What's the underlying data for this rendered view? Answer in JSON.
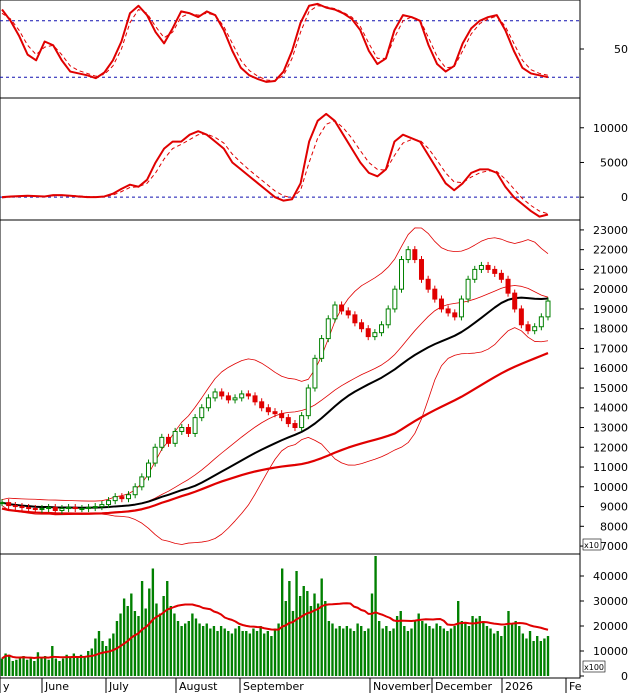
{
  "chart_data": [
    {
      "type": "line",
      "panel": "oscillator-top",
      "y_ticks": [
        {
          "value": 50,
          "label": "50"
        }
      ],
      "ylim": [
        0,
        100
      ],
      "reference_levels": [
        80,
        20
      ],
      "series": [
        {
          "role": "main",
          "color": "#e00000",
          "style": "solid",
          "values": [
            92,
            80,
            64,
            44,
            38,
            58,
            54,
            38,
            26,
            24,
            22,
            19,
            25,
            38,
            58,
            88,
            96,
            86,
            68,
            56,
            72,
            90,
            88,
            84,
            90,
            86,
            70,
            48,
            30,
            22,
            18,
            15,
            16,
            26,
            48,
            78,
            96,
            98,
            94,
            92,
            88,
            82,
            70,
            48,
            34,
            40,
            70,
            86,
            84,
            80,
            54,
            34,
            26,
            32,
            56,
            72,
            80,
            84,
            86,
            70,
            48,
            30,
            24,
            22,
            20
          ]
        },
        {
          "role": "signal",
          "color": "#e00000",
          "style": "dashed",
          "values": [
            88,
            82,
            70,
            54,
            44,
            52,
            54,
            44,
            32,
            27,
            24,
            21,
            23,
            32,
            50,
            78,
            92,
            88,
            74,
            62,
            68,
            84,
            88,
            86,
            88,
            86,
            74,
            56,
            38,
            27,
            21,
            17,
            16,
            22,
            40,
            68,
            90,
            96,
            95,
            93,
            89,
            84,
            74,
            56,
            40,
            40,
            62,
            80,
            84,
            81,
            62,
            42,
            30,
            31,
            48,
            66,
            77,
            82,
            85,
            74,
            56,
            38,
            28,
            24,
            22
          ]
        }
      ]
    },
    {
      "type": "line",
      "panel": "oscillator-middle",
      "y_ticks": [
        {
          "value": 10000,
          "label": "10000"
        },
        {
          "value": 5000,
          "label": "5000"
        },
        {
          "value": 0,
          "label": "0"
        }
      ],
      "ylim": [
        -3000,
        14000
      ],
      "reference_levels": [
        0
      ],
      "series": [
        {
          "role": "main",
          "color": "#e00000",
          "style": "solid",
          "values": [
            0,
            100,
            150,
            200,
            150,
            100,
            300,
            300,
            200,
            100,
            0,
            0,
            100,
            500,
            1200,
            1800,
            1500,
            2500,
            5000,
            7000,
            8000,
            8000,
            9000,
            9500,
            9000,
            8000,
            7000,
            5000,
            4000,
            3000,
            2000,
            1000,
            0,
            -500,
            -300,
            2000,
            8000,
            11000,
            12000,
            11000,
            9000,
            7000,
            5000,
            3500,
            3000,
            4000,
            8000,
            9000,
            8500,
            8000,
            6000,
            4000,
            2000,
            1000,
            2000,
            3500,
            4000,
            4000,
            3500,
            1500,
            0,
            -1000,
            -2000,
            -2800,
            -2500
          ]
        },
        {
          "role": "signal",
          "color": "#e00000",
          "style": "dashed",
          "values": [
            -100,
            0,
            80,
            150,
            150,
            120,
            200,
            250,
            230,
            180,
            100,
            50,
            60,
            300,
            800,
            1400,
            1500,
            2000,
            3500,
            5500,
            7000,
            7600,
            8300,
            9000,
            9100,
            8600,
            7800,
            6200,
            5000,
            3900,
            2900,
            1900,
            900,
            200,
            -100,
            1000,
            5000,
            8500,
            10500,
            11000,
            10000,
            8500,
            6700,
            5000,
            4000,
            3900,
            6000,
            7800,
            8300,
            8200,
            7000,
            5300,
            3500,
            2200,
            2100,
            2900,
            3500,
            3800,
            3700,
            2600,
            1200,
            -200,
            -1200,
            -2000,
            -2400
          ]
        }
      ]
    },
    {
      "type": "line",
      "panel": "price",
      "y_ticks": [
        {
          "value": 23000,
          "label": "23000"
        },
        {
          "value": 22000,
          "label": "22000"
        },
        {
          "value": 21000,
          "label": "21000"
        },
        {
          "value": 20000,
          "label": "20000"
        },
        {
          "value": 19000,
          "label": "19000"
        },
        {
          "value": 18000,
          "label": "18000"
        },
        {
          "value": 17000,
          "label": "17000"
        },
        {
          "value": 16000,
          "label": "16000"
        },
        {
          "value": 15000,
          "label": "15000"
        },
        {
          "value": 14000,
          "label": "14000"
        },
        {
          "value": 13000,
          "label": "13000"
        },
        {
          "value": 12000,
          "label": "12000"
        },
        {
          "value": 11000,
          "label": "11000"
        },
        {
          "value": 10000,
          "label": "10000"
        },
        {
          "value": 9000,
          "label": "9000"
        },
        {
          "value": 8000,
          "label": "8000"
        },
        {
          "value": 7000,
          "label": "7000"
        }
      ],
      "ylim": [
        6700,
        23400
      ],
      "unit_label": "x10",
      "candles_close": [
        9200,
        9050,
        9000,
        8950,
        8900,
        8850,
        8900,
        8950,
        8800,
        8900,
        8950,
        8900,
        8900,
        8950,
        9000,
        9100,
        9300,
        9500,
        9400,
        9600,
        10000,
        10500,
        11200,
        12000,
        12500,
        12200,
        12800,
        13000,
        12700,
        13500,
        14000,
        14500,
        14800,
        14600,
        14400,
        14500,
        14700,
        14600,
        14300,
        14000,
        13800,
        13700,
        13500,
        13200,
        13000,
        13600,
        15000,
        16500,
        17500,
        18500,
        19200,
        18900,
        18700,
        18300,
        18000,
        17600,
        17800,
        18200,
        19000,
        20000,
        21500,
        22000,
        21500,
        20500,
        20000,
        19500,
        19000,
        18800,
        18600,
        19500,
        20500,
        21000,
        21200,
        21000,
        20800,
        20500,
        19800,
        19000,
        18200,
        17900,
        18100,
        18600,
        19400
      ]
    },
    {
      "type": "bar",
      "panel": "volume",
      "y_ticks": [
        {
          "value": 40000,
          "label": "40000"
        },
        {
          "value": 30000,
          "label": "30000"
        },
        {
          "value": 20000,
          "label": "20000"
        },
        {
          "value": 10000,
          "label": "10000"
        },
        {
          "value": 0,
          "label": "0"
        }
      ],
      "ylim": [
        0,
        48000
      ],
      "unit_label": "x100",
      "moving_average_color": "#e00000",
      "bar_color": "#008000",
      "values": [
        7000,
        9000,
        8500,
        6000,
        6500,
        7500,
        8000,
        6500,
        7000,
        6000,
        9500,
        7000,
        8000,
        6500,
        12000,
        7000,
        6000,
        7000,
        8500,
        7500,
        9000,
        8000,
        8500,
        7500,
        10000,
        11000,
        15000,
        18000,
        14000,
        12000,
        15000,
        17000,
        22000,
        25000,
        31000,
        28000,
        33000,
        26000,
        24000,
        38000,
        27000,
        35000,
        43000,
        29000,
        25000,
        32000,
        38000,
        28000,
        25000,
        22000,
        20000,
        21000,
        22000,
        25000,
        23000,
        21000,
        20000,
        21000,
        19000,
        20000,
        18000,
        20000,
        19000,
        18000,
        17000,
        19000,
        20000,
        18000,
        18000,
        17000,
        19000,
        18000,
        20000,
        17000,
        18000,
        16000,
        19000,
        21000,
        43000,
        30000,
        38000,
        26000,
        42000,
        32000,
        36000,
        34000,
        28000,
        33000,
        29000,
        39000,
        30000,
        22000,
        21000,
        19000,
        20000,
        19000,
        20000,
        19000,
        18000,
        21000,
        20000,
        18000,
        19000,
        33000,
        48000,
        22000,
        19000,
        20000,
        18000,
        19000,
        24000,
        26000,
        20000,
        18000,
        19000,
        22000,
        25000,
        22000,
        21000,
        20000,
        19000,
        21000,
        20000,
        19000,
        18000,
        19000,
        20000,
        30000,
        22000,
        21000,
        20000,
        24000,
        23000,
        24000,
        22000,
        20000,
        19000,
        17000,
        18000,
        16000,
        20000,
        26000,
        21000,
        22000,
        20000,
        17000,
        15000,
        18000,
        14000,
        16000,
        14000,
        15000,
        16000
      ]
    }
  ],
  "x_axis": {
    "months": [
      "y",
      "June",
      "July",
      "August",
      "September",
      "November",
      "December",
      "2026",
      "Fe"
    ]
  }
}
